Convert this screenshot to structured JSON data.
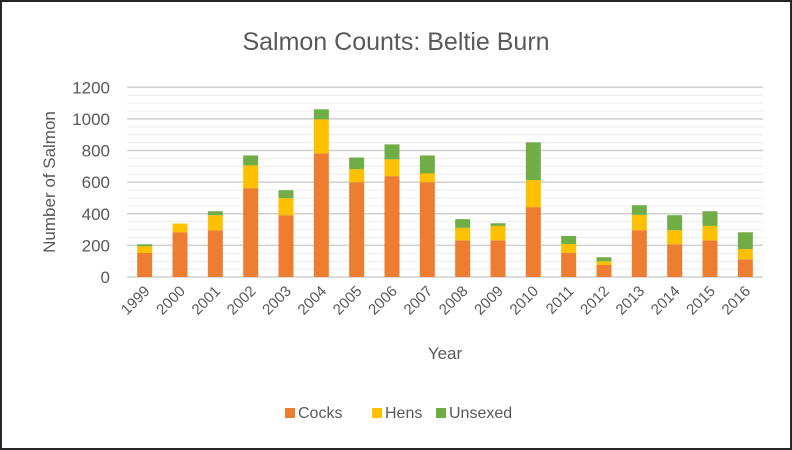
{
  "chart_data": {
    "type": "bar",
    "stacked": true,
    "title": "Salmon Counts:  Beltie Burn",
    "xlabel": "Year",
    "ylabel": "Number of Salmon",
    "ylim": [
      0,
      1200
    ],
    "yticks": [
      0,
      200,
      400,
      600,
      800,
      1000,
      1200
    ],
    "grid": true,
    "legend_position": "bottom",
    "categories": [
      "1999",
      "2000",
      "2001",
      "2002",
      "2003",
      "2004",
      "2005",
      "2006",
      "2007",
      "2008",
      "2009",
      "2010",
      "2011",
      "2012",
      "2013",
      "2014",
      "2015",
      "2016"
    ],
    "series": [
      {
        "name": "Cocks",
        "color": "#ED7D31",
        "values": [
          152,
          283,
          296,
          562,
          391,
          782,
          600,
          638,
          600,
          232,
          232,
          442,
          152,
          76,
          296,
          207,
          232,
          112
        ]
      },
      {
        "name": "Hens",
        "color": "#FFC000",
        "values": [
          42,
          55,
          95,
          144,
          108,
          215,
          82,
          106,
          55,
          79,
          91,
          171,
          57,
          23,
          97,
          89,
          91,
          65
        ]
      },
      {
        "name": "Unsexed",
        "color": "#70AD47",
        "values": [
          13,
          0,
          25,
          63,
          50,
          64,
          74,
          95,
          114,
          55,
          17,
          239,
          51,
          26,
          61,
          95,
          93,
          106
        ]
      }
    ]
  }
}
